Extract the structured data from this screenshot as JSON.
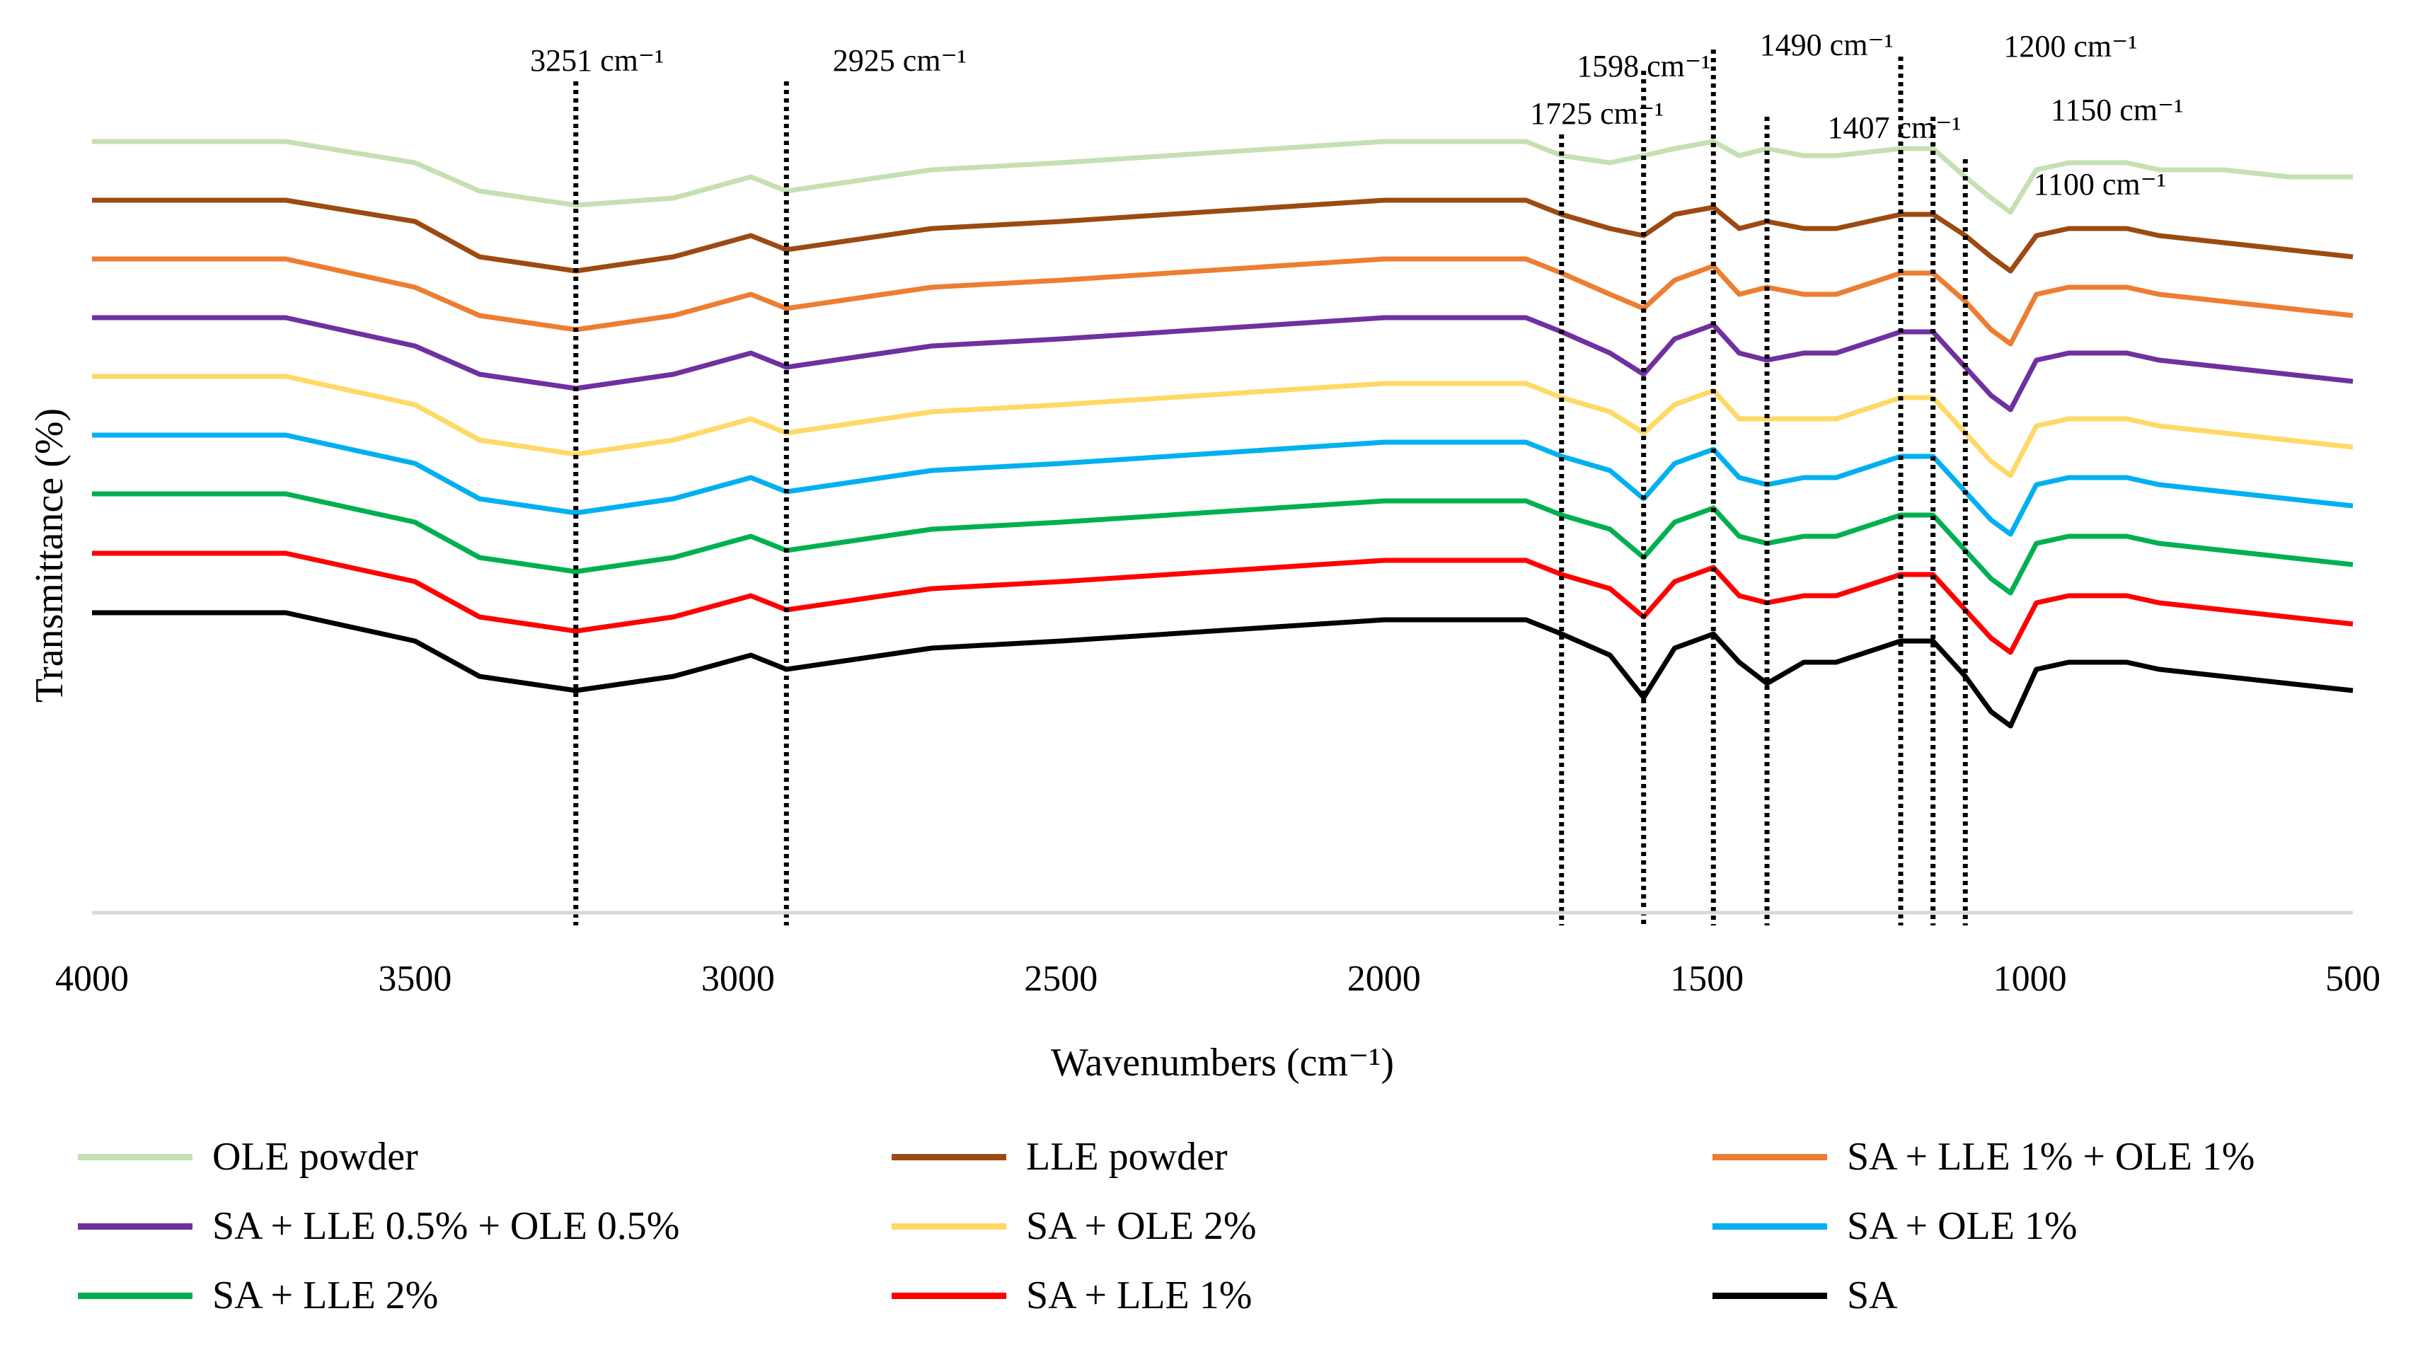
{
  "chart_data": {
    "type": "line",
    "title": "",
    "xlabel": "Wavenumbers (cm⁻¹)",
    "ylabel": "Transmittance (%)",
    "xlim": [
      4000,
      500
    ],
    "x_reversed": true,
    "x_ticks": [
      4000,
      3500,
      3000,
      2500,
      2000,
      1500,
      1000,
      500
    ],
    "x_tick_labels": [
      "4000",
      "3500",
      "3000",
      "2500",
      "2000",
      "1500",
      "1000",
      "500"
    ],
    "y_ticks_shown": false,
    "grid": false,
    "legend_position": "bottom",
    "annotations": [
      {
        "label": "3251 cm⁻¹",
        "x": 3251
      },
      {
        "label": "2925 cm⁻¹",
        "x": 2925
      },
      {
        "label": "1725 cm⁻¹",
        "x": 1725
      },
      {
        "label": "1598 cm⁻¹",
        "x": 1598
      },
      {
        "label": "1490 cm⁻¹",
        "x": 1490
      },
      {
        "label": "1407 cm⁻¹",
        "x": 1407
      },
      {
        "label": "1200 cm⁻¹",
        "x": 1200
      },
      {
        "label": "1150 cm⁻¹",
        "x": 1150
      },
      {
        "label": "1100 cm⁻¹",
        "x": 1100
      }
    ],
    "x": [
      4000,
      3700,
      3500,
      3400,
      3251,
      3100,
      2980,
      2925,
      2850,
      2700,
      2500,
      2000,
      1780,
      1725,
      1650,
      1598,
      1550,
      1490,
      1450,
      1407,
      1350,
      1300,
      1200,
      1150,
      1100,
      1060,
      1030,
      990,
      940,
      900,
      850,
      800,
      700,
      600,
      500
    ],
    "series": [
      {
        "name": "OLE powder",
        "color": "#c5e0b3",
        "offset": 0,
        "values": [
          0,
          0,
          -3,
          -7,
          -9,
          -8,
          -5,
          -7,
          -6,
          -4,
          -3,
          0,
          0,
          -2,
          -3,
          -2,
          -1,
          0,
          -2,
          -1,
          -2,
          -2,
          -1,
          -1,
          -5,
          -8,
          -10,
          -4,
          -3,
          -3,
          -3,
          -4,
          -4,
          -5,
          -5
        ]
      },
      {
        "name": "LLE powder",
        "color": "#9c4a12",
        "offset": 0,
        "values": [
          0,
          0,
          -3,
          -8,
          -10,
          -8,
          -5,
          -7,
          -6,
          -4,
          -3,
          0,
          0,
          -2,
          -4,
          -5,
          -2,
          -1,
          -4,
          -3,
          -4,
          -4,
          -2,
          -2,
          -5,
          -8,
          -10,
          -5,
          -4,
          -4,
          -4,
          -5,
          -6,
          -7,
          -8
        ]
      },
      {
        "name": "SA + LLE 1% + OLE 1%",
        "color": "#ed7d31",
        "offset": 0,
        "values": [
          0,
          0,
          -4,
          -8,
          -10,
          -8,
          -5,
          -7,
          -6,
          -4,
          -3,
          0,
          0,
          -2,
          -5,
          -7,
          -3,
          -1,
          -5,
          -4,
          -5,
          -5,
          -2,
          -2,
          -6,
          -10,
          -12,
          -5,
          -4,
          -4,
          -4,
          -5,
          -6,
          -7,
          -8
        ]
      },
      {
        "name": "SA + LLE 0.5% + OLE 0.5%",
        "color": "#7030a0",
        "offset": 0,
        "values": [
          0,
          0,
          -4,
          -8,
          -10,
          -8,
          -5,
          -7,
          -6,
          -4,
          -3,
          0,
          0,
          -2,
          -5,
          -8,
          -3,
          -1,
          -5,
          -6,
          -5,
          -5,
          -2,
          -2,
          -7,
          -11,
          -13,
          -6,
          -5,
          -5,
          -5,
          -6,
          -7,
          -8,
          -9
        ]
      },
      {
        "name": "SA + OLE 2%",
        "color": "#ffd966",
        "offset": 0,
        "values": [
          0,
          0,
          -4,
          -9,
          -11,
          -9,
          -6,
          -8,
          -7,
          -5,
          -4,
          -1,
          -1,
          -3,
          -5,
          -8,
          -4,
          -2,
          -6,
          -6,
          -6,
          -6,
          -3,
          -3,
          -8,
          -12,
          -14,
          -7,
          -6,
          -6,
          -6,
          -7,
          -8,
          -9,
          -10
        ]
      },
      {
        "name": "SA + OLE 1%",
        "color": "#00b0f0",
        "offset": 0,
        "values": [
          0,
          0,
          -4,
          -9,
          -11,
          -9,
          -6,
          -8,
          -7,
          -5,
          -4,
          -1,
          -1,
          -3,
          -5,
          -9,
          -4,
          -2,
          -6,
          -7,
          -6,
          -6,
          -3,
          -3,
          -8,
          -12,
          -14,
          -7,
          -6,
          -6,
          -6,
          -7,
          -8,
          -9,
          -10
        ]
      },
      {
        "name": "SA + LLE 2%",
        "color": "#00b050",
        "offset": 0,
        "values": [
          0,
          0,
          -4,
          -9,
          -11,
          -9,
          -6,
          -8,
          -7,
          -5,
          -4,
          -1,
          -1,
          -3,
          -5,
          -9,
          -4,
          -2,
          -6,
          -7,
          -6,
          -6,
          -3,
          -3,
          -8,
          -12,
          -14,
          -7,
          -6,
          -6,
          -6,
          -7,
          -8,
          -9,
          -10
        ]
      },
      {
        "name": "SA + LLE 1%",
        "color": "#ff0000",
        "offset": 0,
        "values": [
          0,
          0,
          -4,
          -9,
          -11,
          -9,
          -6,
          -8,
          -7,
          -5,
          -4,
          -1,
          -1,
          -3,
          -5,
          -9,
          -4,
          -2,
          -6,
          -7,
          -6,
          -6,
          -3,
          -3,
          -8,
          -12,
          -14,
          -7,
          -6,
          -6,
          -6,
          -7,
          -8,
          -9,
          -10
        ]
      },
      {
        "name": "SA",
        "color": "#000000",
        "offset": 0,
        "values": [
          0,
          0,
          -4,
          -9,
          -11,
          -9,
          -6,
          -8,
          -7,
          -5,
          -4,
          -1,
          -1,
          -3,
          -6,
          -12,
          -5,
          -3,
          -7,
          -10,
          -7,
          -7,
          -4,
          -4,
          -9,
          -14,
          -16,
          -8,
          -7,
          -7,
          -7,
          -8,
          -9,
          -10,
          -11
        ]
      }
    ]
  }
}
